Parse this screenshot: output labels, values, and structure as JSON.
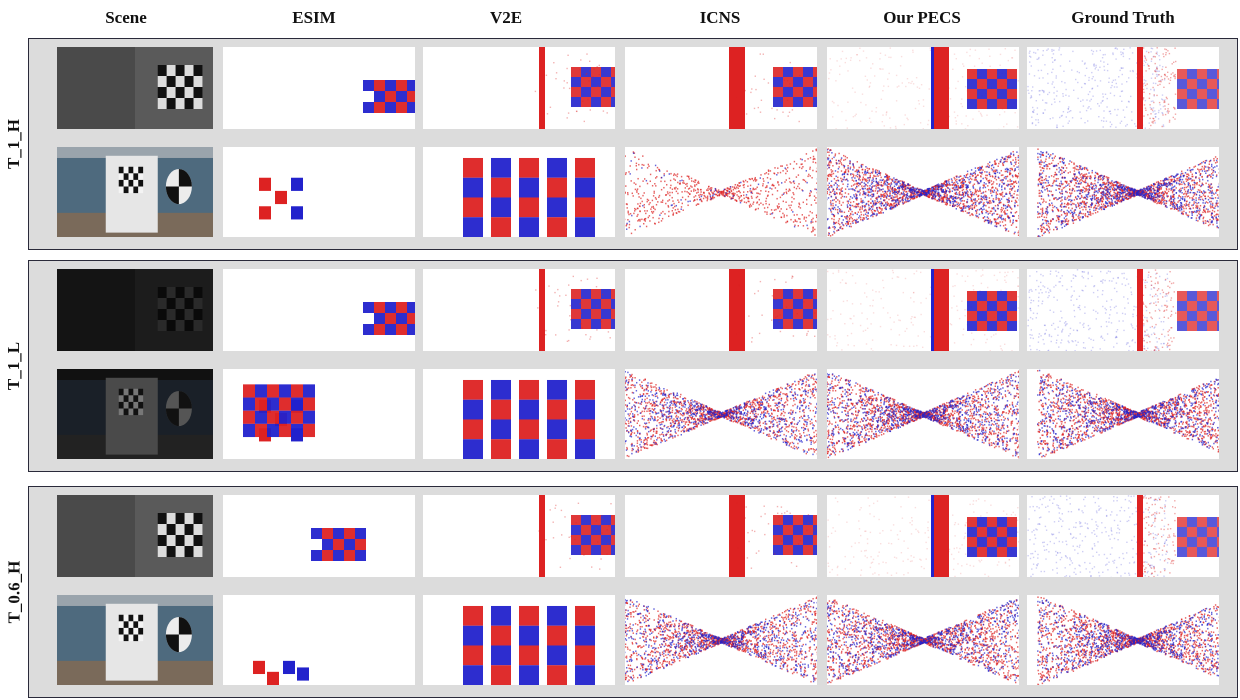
{
  "columns": [
    "Scene",
    "ESIM",
    "V2E",
    "ICNS",
    "Our PECS",
    "Ground Truth"
  ],
  "groups": [
    {
      "label": "T_1_H",
      "brightness": "normal"
    },
    {
      "label": "T_1_L",
      "brightness": "low"
    },
    {
      "label": "T_0.6_H",
      "brightness": "normal"
    }
  ],
  "colors": {
    "positive_event": "#dd2222",
    "negative_event": "#2222cc",
    "panel_background": "#dcdcdc",
    "frame_border": "#2a2a3a"
  },
  "scene_types": [
    "checkerboard-top",
    "room-with-target"
  ]
}
